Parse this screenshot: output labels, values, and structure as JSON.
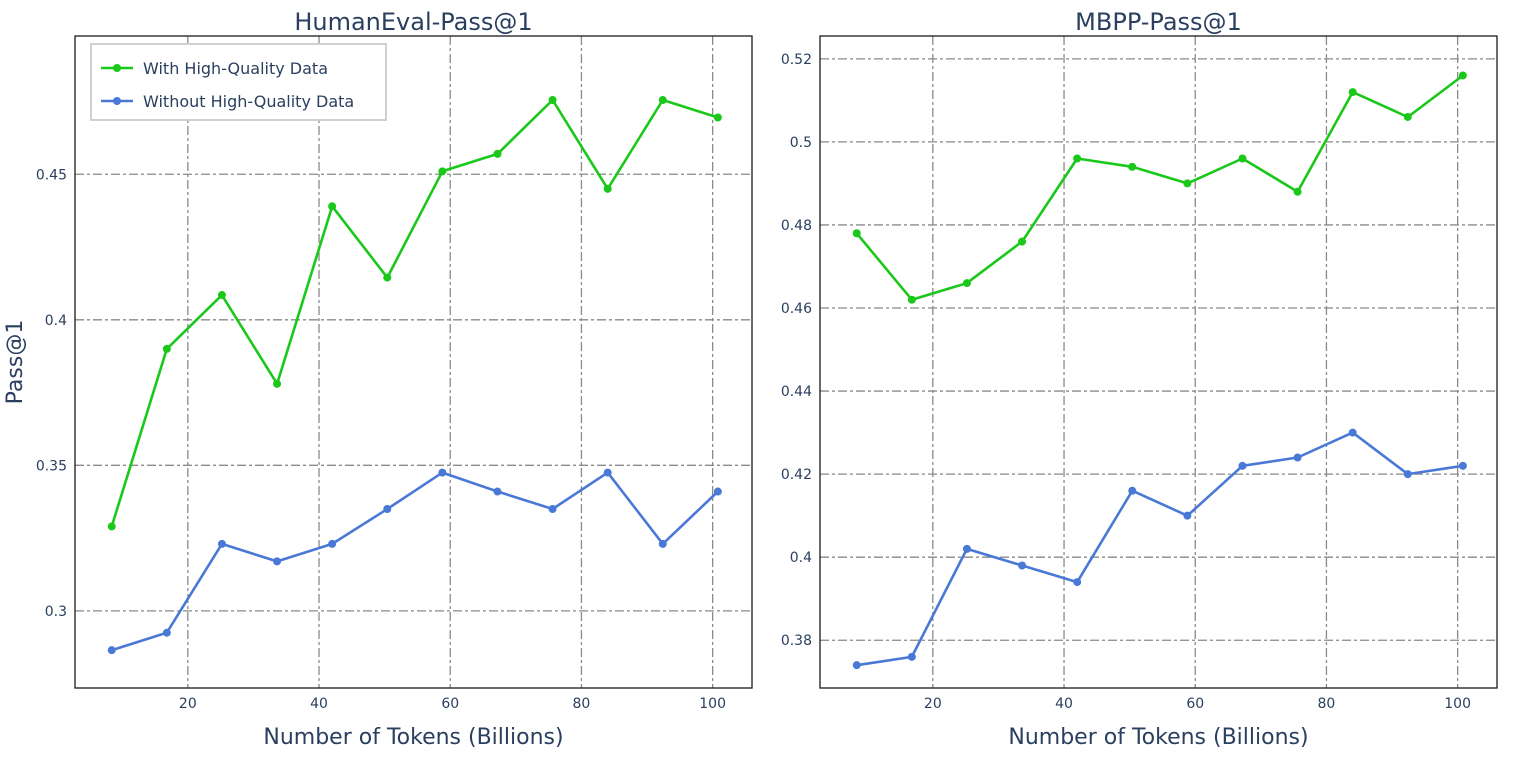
{
  "chart_data": [
    {
      "type": "line",
      "title": "HumanEval-Pass@1",
      "xlabel": "Number of Tokens (Billions)",
      "ylabel": "Pass@1",
      "xlim": [
        2.8,
        106
      ],
      "ylim": [
        0.2735,
        0.4975
      ],
      "x_ticks": [
        20,
        40,
        60,
        80,
        100
      ],
      "x_tick_labels": [
        "20",
        "40",
        "60",
        "80",
        "100"
      ],
      "y_ticks": [
        0.3,
        0.35,
        0.4,
        0.45
      ],
      "y_tick_labels": [
        "0.3",
        "0.35",
        "0.4",
        "0.45"
      ],
      "grid": true,
      "legend_position": "top-left",
      "series": [
        {
          "name": "With High-Quality Data",
          "color": "#1ac81a",
          "x": [
            8.4,
            16.8,
            25.2,
            33.6,
            42.0,
            50.4,
            58.8,
            67.2,
            75.6,
            84.0,
            92.4,
            100.8
          ],
          "y": [
            0.329,
            0.39,
            0.4085,
            0.378,
            0.439,
            0.4145,
            0.451,
            0.457,
            0.4755,
            0.445,
            0.4755,
            0.4695
          ]
        },
        {
          "name": "Without High-Quality Data",
          "color": "#4a78d6",
          "x": [
            8.4,
            16.8,
            25.2,
            33.6,
            42.0,
            50.4,
            58.8,
            67.2,
            75.6,
            84.0,
            92.4,
            100.8
          ],
          "y": [
            0.2865,
            0.2925,
            0.323,
            0.317,
            0.323,
            0.335,
            0.3475,
            0.341,
            0.335,
            0.3475,
            0.323,
            0.341
          ]
        }
      ]
    },
    {
      "type": "line",
      "title": "MBPP-Pass@1",
      "xlabel": "Number of Tokens (Billions)",
      "ylabel": "",
      "xlim": [
        2.8,
        106
      ],
      "ylim": [
        0.3685,
        0.5255
      ],
      "x_ticks": [
        20,
        40,
        60,
        80,
        100
      ],
      "x_tick_labels": [
        "20",
        "40",
        "60",
        "80",
        "100"
      ],
      "y_ticks": [
        0.38,
        0.4,
        0.42,
        0.44,
        0.46,
        0.48,
        0.5,
        0.52
      ],
      "y_tick_labels": [
        "0.38",
        "0.4",
        "0.42",
        "0.44",
        "0.46",
        "0.48",
        "0.5",
        "0.52"
      ],
      "grid": true,
      "legend_position": "none",
      "series": [
        {
          "name": "With High-Quality Data",
          "color": "#1ac81a",
          "x": [
            8.4,
            16.8,
            25.2,
            33.6,
            42.0,
            50.4,
            58.8,
            67.2,
            75.6,
            84.0,
            92.4,
            100.8
          ],
          "y": [
            0.478,
            0.462,
            0.466,
            0.476,
            0.496,
            0.494,
            0.49,
            0.496,
            0.488,
            0.512,
            0.506,
            0.516
          ]
        },
        {
          "name": "Without High-Quality Data",
          "color": "#4a78d6",
          "x": [
            8.4,
            16.8,
            25.2,
            33.6,
            42.0,
            50.4,
            58.8,
            67.2,
            75.6,
            84.0,
            92.4,
            100.8
          ],
          "y": [
            0.374,
            0.376,
            0.402,
            0.398,
            0.394,
            0.416,
            0.41,
            0.422,
            0.424,
            0.43,
            0.42,
            0.422
          ]
        }
      ]
    }
  ]
}
